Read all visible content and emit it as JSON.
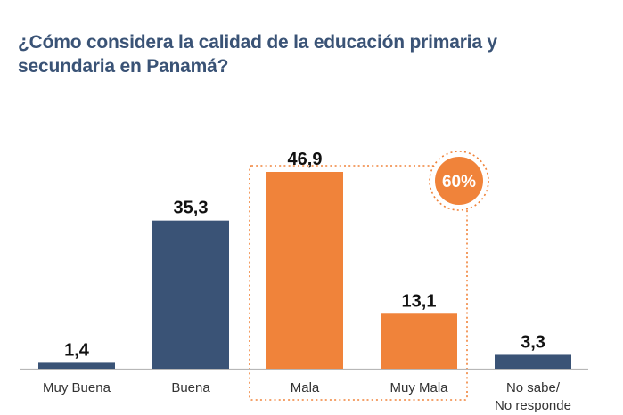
{
  "chart_data": {
    "type": "bar",
    "title": "¿Cómo considera la calidad de la educación primaria y secundaria en Panamá?",
    "categories": [
      "Muy Buena",
      "Buena",
      "Mala",
      "Muy Mala",
      "No sabe/\nNo responde"
    ],
    "values": [
      1.4,
      35.3,
      46.9,
      13.1,
      3.3
    ],
    "value_labels": [
      "1,4",
      "35,3",
      "46,9",
      "13,1",
      "3,3"
    ],
    "bar_colors": [
      "#3a5376",
      "#3a5376",
      "#f0833a",
      "#f0833a",
      "#3a5376"
    ],
    "ylim": [
      0,
      50
    ],
    "grid": false,
    "annotation": {
      "text": "60%",
      "groups": [
        "Mala",
        "Muy Mala"
      ],
      "color": "#f0833a"
    },
    "colors": {
      "title": "#3a5376",
      "axis": "#b7b7b7",
      "label": "#333333",
      "value": "#111111"
    }
  }
}
